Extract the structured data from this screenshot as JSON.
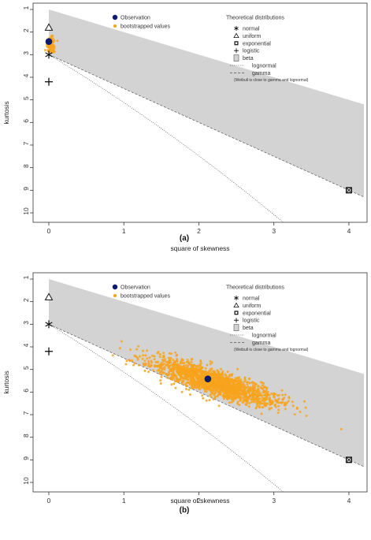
{
  "chart_data": [
    {
      "type": "scatter",
      "panel_tag": "(a)",
      "xlabel": "square of skewness",
      "ylabel": "kurtosis",
      "xlim": [
        0,
        4.2
      ],
      "ylim": [
        10,
        1
      ],
      "xticks": [
        0,
        1,
        2,
        3,
        4
      ],
      "yticks": [
        1,
        2,
        3,
        4,
        5,
        6,
        7,
        8,
        9,
        10
      ],
      "observation": {
        "x": 0.0,
        "y": 2.42
      },
      "bootstrap_cloud": {
        "center_x": 0.03,
        "center_y": 2.55,
        "spread_x": 0.03,
        "spread_y": 0.22,
        "slope": 0.0,
        "n": 90
      },
      "legend": {
        "observation": "Observation",
        "bootstrapped": "bootstrapped values",
        "theoretical_title": "Theoretical distributions",
        "normal": "normal",
        "uniform": "uniform",
        "exponential": "exponential",
        "logistic": "logistic",
        "beta": "beta",
        "lognormal": "lognormal",
        "gamma": "gamma",
        "note": "(Weibull is close to gamma and lognormal)"
      }
    },
    {
      "type": "scatter",
      "panel_tag": "(b)",
      "xlabel": "square of skewness",
      "ylabel": "kurtosis",
      "xlim": [
        0,
        4.2
      ],
      "ylim": [
        10,
        1
      ],
      "xticks": [
        0,
        1,
        2,
        3,
        4
      ],
      "yticks": [
        1,
        2,
        3,
        4,
        5,
        6,
        7,
        8,
        9,
        10
      ],
      "observation": {
        "x": 2.12,
        "y": 5.42
      },
      "bootstrap_cloud": {
        "center_x": 2.2,
        "center_y": 5.55,
        "spread_x": 0.42,
        "spread_y": 0.28,
        "slope": 1.0,
        "n": 1800
      },
      "legend": {
        "observation": "Observation",
        "bootstrapped": "bootstrapped values",
        "theoretical_title": "Theoretical distributions",
        "normal": "normal",
        "uniform": "uniform",
        "exponential": "exponential",
        "logistic": "logistic",
        "beta": "beta",
        "lognormal": "lognormal",
        "gamma": "gamma",
        "note": "(Weibull is close to gamma and lognormal)"
      }
    }
  ],
  "theoretical_points": {
    "normal": {
      "x": 0,
      "y": 3
    },
    "uniform": {
      "x": 0,
      "y": 1.8
    },
    "exponential": {
      "x": 4,
      "y": 9
    },
    "logistic": {
      "x": 0,
      "y": 4.2
    }
  },
  "beta_region": {
    "upper_line": [
      [
        0,
        1
      ],
      [
        4.2,
        5.2
      ]
    ],
    "lower_line": [
      [
        0,
        3
      ],
      [
        4.2,
        9.3
      ]
    ]
  },
  "colors": {
    "observation": "#0b1b6e",
    "bootstrap": "#f8a31c",
    "beta_region": "#d3d3d3",
    "axis": "#333333"
  }
}
